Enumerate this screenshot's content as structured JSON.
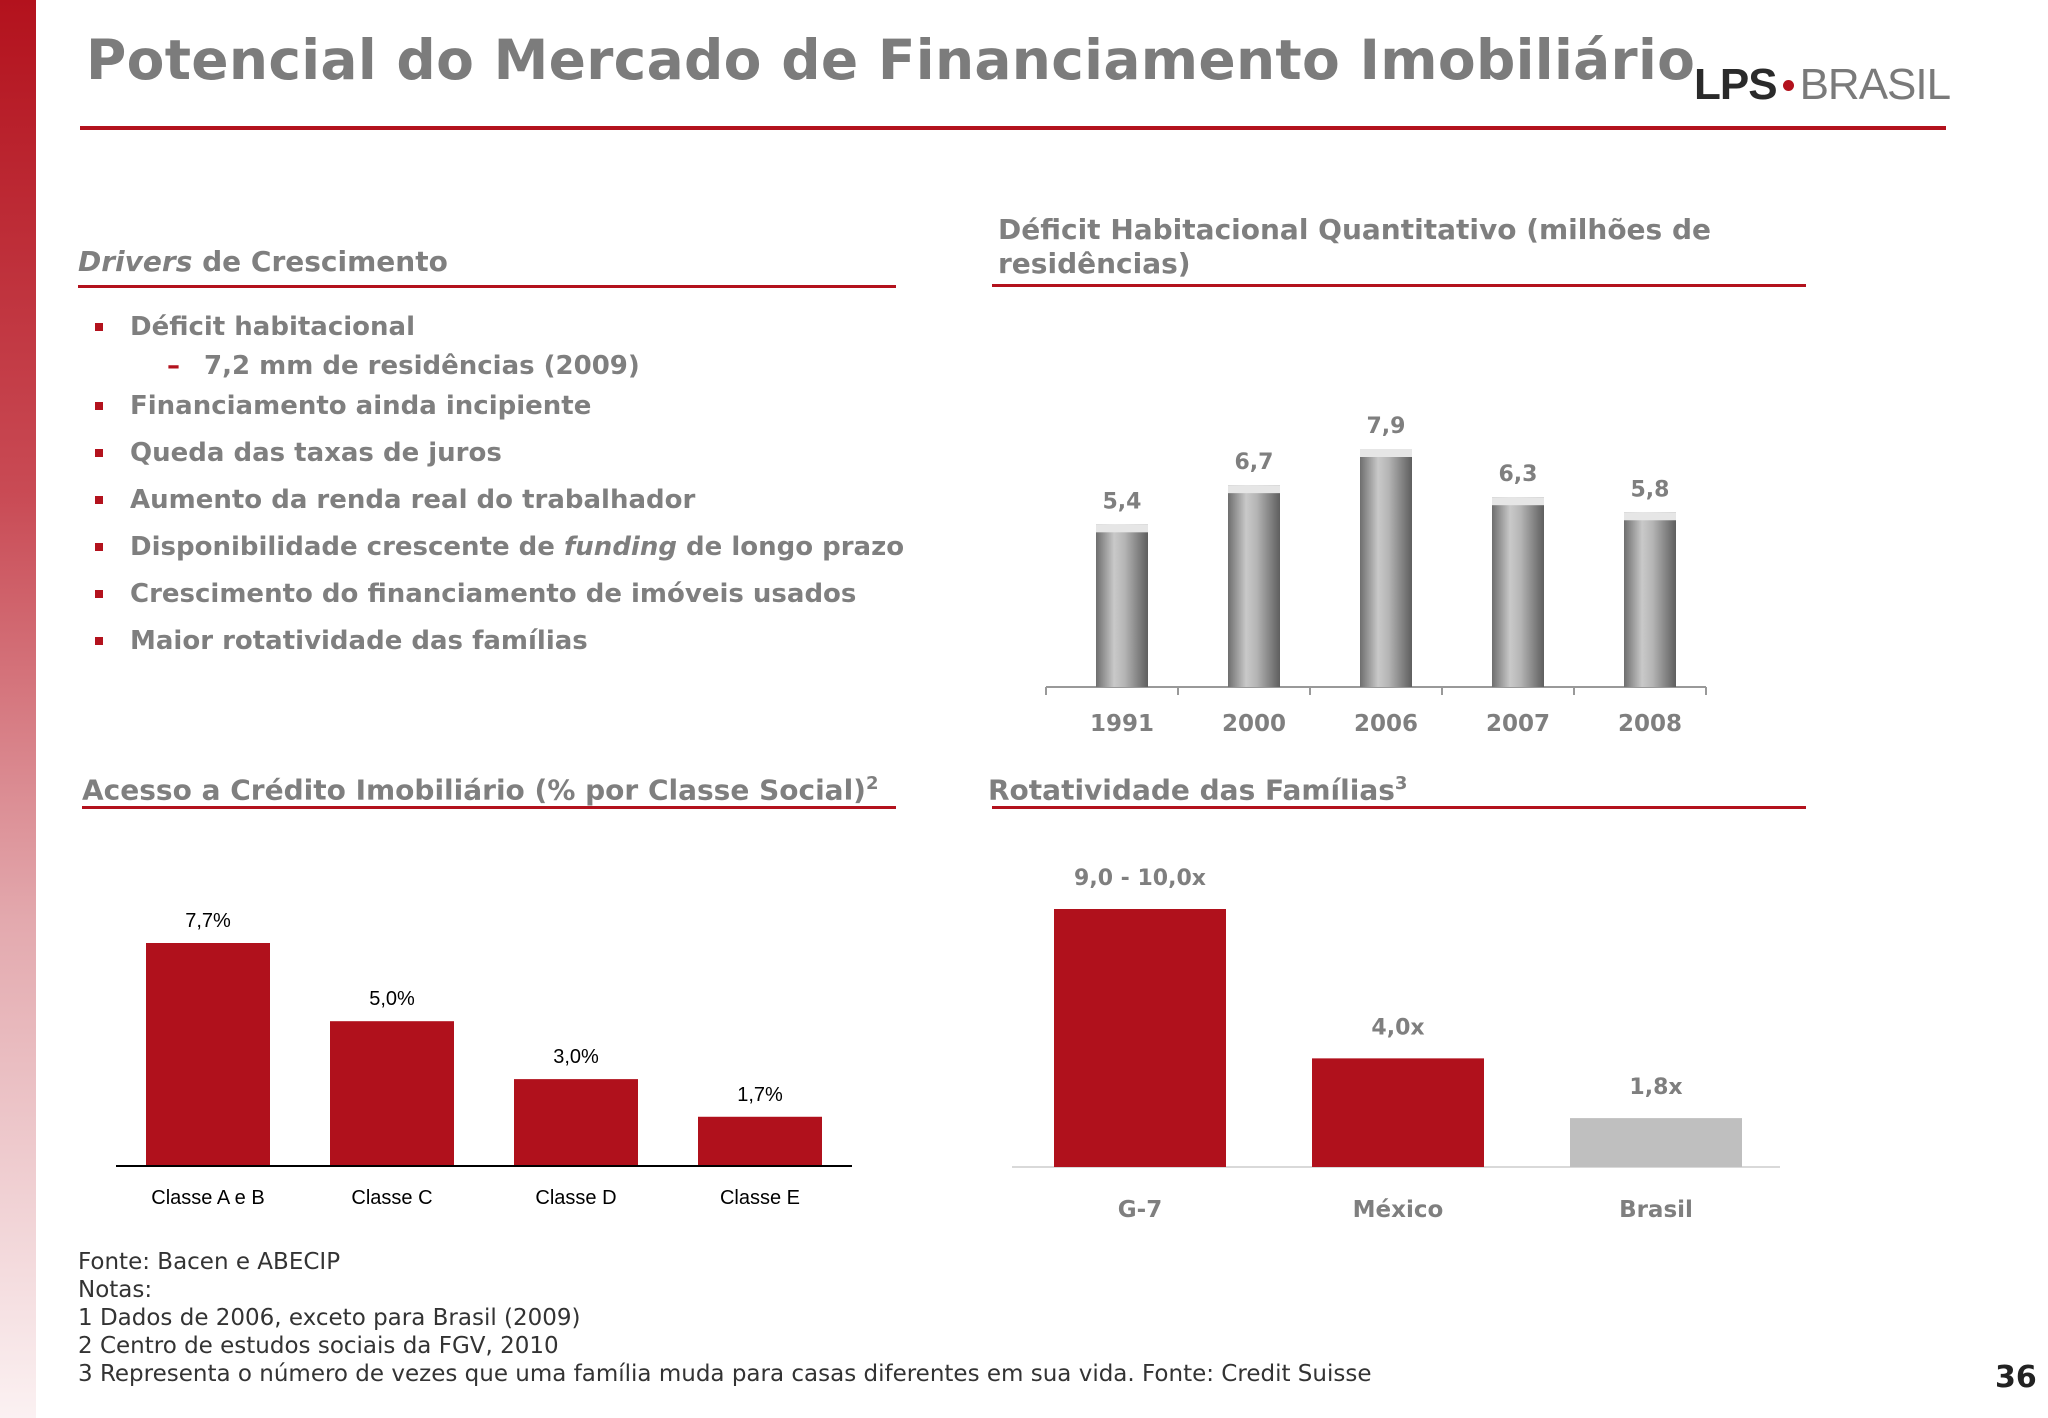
{
  "slide": {
    "title": "Potencial do Mercado de Financiamento Imobiliário",
    "logo_lps": "LPS",
    "logo_brasil": "BRASIL",
    "page_number": "36",
    "accent_color": "#b3121d"
  },
  "drivers": {
    "title_italic": "Drivers",
    "title_rest": " de Crescimento",
    "items": [
      {
        "text": "Déficit habitacional"
      },
      {
        "text": "Financiamento ainda incipiente"
      },
      {
        "text": "Queda das taxas de juros"
      },
      {
        "text": "Aumento da renda real do trabalhador"
      },
      {
        "text_before": "Disponibilidade crescente de ",
        "text_italic": "funding",
        "text_after": " de longo prazo"
      },
      {
        "text": "Crescimento do financiamento de imóveis usados"
      },
      {
        "text": "Maior rotatividade das famílias"
      }
    ],
    "sub_item": "7,2 mm de residências (2009)",
    "sub_dash": "–"
  },
  "deficit_title_line1": "Déficit Habitacional Quantitativo (milhões de",
  "deficit_title_line2": "residências)",
  "credito_title": "Acesso a Crédito Imobiliário (% por Classe Social)",
  "credito_sup": "2",
  "rotatividade_title": "Rotatividade das Famílias",
  "rotatividade_sup": "3",
  "chart_data": [
    {
      "type": "bar",
      "title": "Déficit Habitacional Quantitativo (milhões de residências)",
      "categories": [
        "1991",
        "2000",
        "2006",
        "2007",
        "2008"
      ],
      "values": [
        5.4,
        6.7,
        7.9,
        6.3,
        5.8
      ],
      "labels": [
        "5,4",
        "6,7",
        "7,9",
        "6,3",
        "5,8"
      ],
      "color": "#a6a6a6",
      "ylim": [
        0,
        7.9
      ]
    },
    {
      "type": "bar",
      "title": "Acesso a Crédito Imobiliário (% por Classe Social)",
      "categories": [
        "Classe A e B",
        "Classe C",
        "Classe D",
        "Classe E"
      ],
      "values": [
        7.7,
        5.0,
        3.0,
        1.7
      ],
      "labels": [
        "7,7%",
        "5,0%",
        "3,0%",
        "1,7%"
      ],
      "color": "#b0111c",
      "ylim": [
        0,
        7.7
      ]
    },
    {
      "type": "bar",
      "title": "Rotatividade das Famílias",
      "categories": [
        "G-7",
        "México",
        "Brasil"
      ],
      "values": [
        9.5,
        4.0,
        1.8
      ],
      "labels": [
        "9,0 - 10,0x",
        "4,0x",
        "1,8x"
      ],
      "colors": [
        "#b0111c",
        "#b0111c",
        "#bfbfbf"
      ],
      "ylim": [
        0,
        9.5
      ]
    }
  ],
  "footnotes": [
    "Fonte:  Bacen e ABECIP",
    "Notas:",
    "1 Dados de 2006, exceto para Brasil (2009)",
    "2 Centro de estudos sociais da FGV, 2010",
    "3 Representa o número de vezes que uma família muda para casas diferentes em sua vida. Fonte: Credit Suisse"
  ]
}
